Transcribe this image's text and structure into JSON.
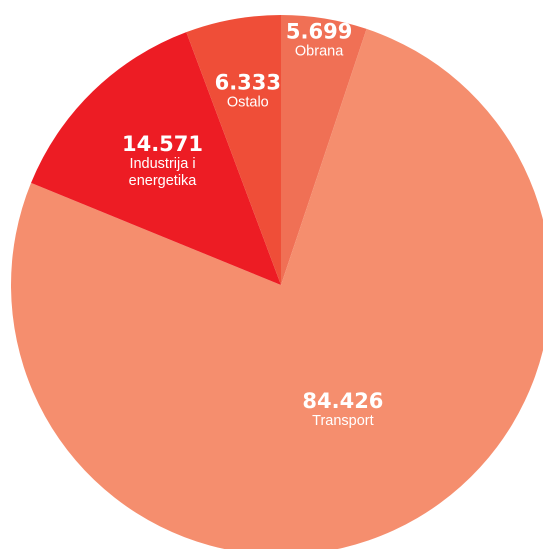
{
  "chart_data": {
    "type": "pie",
    "title": "",
    "slices": [
      {
        "label_lines": [
          "Obrana"
        ],
        "display_value": "5.699",
        "value": 5699,
        "color": "#F07055"
      },
      {
        "label_lines": [
          "Transport"
        ],
        "display_value": "84.426",
        "value": 84426,
        "color": "#F58E6E"
      },
      {
        "label_lines": [
          "Industrija i",
          "energetika"
        ],
        "display_value": "14.571",
        "value": 14571,
        "color": "#ED1C24"
      },
      {
        "label_lines": [
          "Ostalo"
        ],
        "display_value": "6.333",
        "value": 6333,
        "color": "#EF4E38"
      }
    ]
  }
}
